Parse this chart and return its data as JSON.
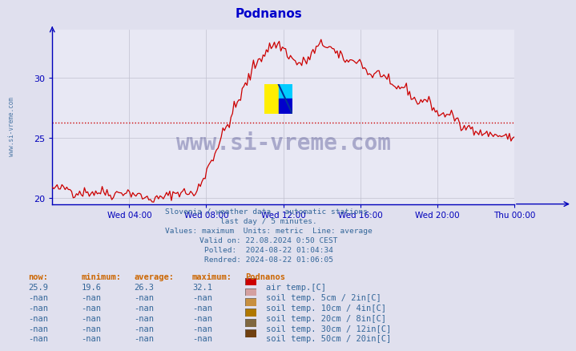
{
  "title": "Podnanos",
  "title_color": "#0000cc",
  "bg_color": "#e0e0ee",
  "plot_bg_color": "#e8e8f4",
  "grid_color": "#c0c0d0",
  "axis_color": "#0000bb",
  "line_color": "#cc0000",
  "avg_line_color": "#cc0000",
  "avg_value": 26.3,
  "ylim": [
    19.5,
    34.0
  ],
  "yticks": [
    20,
    25,
    30
  ],
  "xtick_labels": [
    "Wed 04:00",
    "Wed 08:00",
    "Wed 12:00",
    "Wed 16:00",
    "Wed 20:00",
    "Thu 00:00"
  ],
  "watermark_text": "www.si-vreme.com",
  "watermark_color": "#1a1a6e",
  "watermark_alpha": 0.3,
  "info_lines": [
    "Slovenia / weather data - automatic stations.",
    "last day / 5 minutes.",
    "Values: maximum  Units: metric  Line: average",
    "Valid on: 22.08.2024 0:50 CEST",
    "Polled:  2024-08-22 01:04:34",
    "Rendred: 2024-08-22 01:06:05"
  ],
  "info_color": "#336699",
  "table_headers": [
    "now:",
    "minimum:",
    "average:",
    "maximum:",
    "Podnanos"
  ],
  "table_rows": [
    [
      "25.9",
      "19.6",
      "26.3",
      "32.1",
      "#cc0000",
      "air temp.[C]"
    ],
    [
      "-nan",
      "-nan",
      "-nan",
      "-nan",
      "#d4a0a0",
      "soil temp. 5cm / 2in[C]"
    ],
    [
      "-nan",
      "-nan",
      "-nan",
      "-nan",
      "#c89040",
      "soil temp. 10cm / 4in[C]"
    ],
    [
      "-nan",
      "-nan",
      "-nan",
      "-nan",
      "#b07800",
      "soil temp. 20cm / 8in[C]"
    ],
    [
      "-nan",
      "-nan",
      "-nan",
      "-nan",
      "#806840",
      "soil temp. 30cm / 12in[C]"
    ],
    [
      "-nan",
      "-nan",
      "-nan",
      "-nan",
      "#704010",
      "soil temp. 50cm / 20in[C]"
    ]
  ],
  "table_color": "#336699",
  "table_header_color": "#cc6600",
  "n_points": 288
}
